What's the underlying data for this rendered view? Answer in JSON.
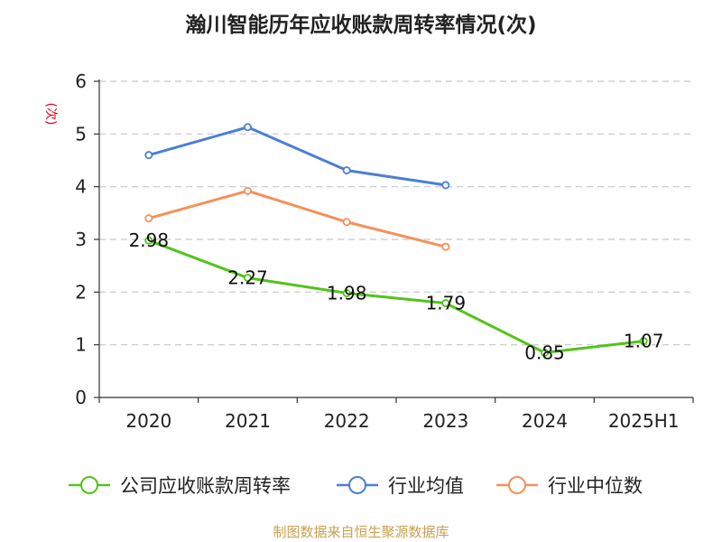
{
  "chart_data": {
    "type": "line",
    "title": "瀚川智能历年应收账款周转率情况(次)",
    "ylabel": "(次)",
    "categories": [
      "2020",
      "2021",
      "2022",
      "2023",
      "2024",
      "2025H1"
    ],
    "y_ticks": [
      "0",
      "1",
      "2",
      "3",
      "4",
      "5",
      "6"
    ],
    "ylim": [
      0,
      6
    ],
    "grid": true,
    "legend_position": "bottom",
    "series": [
      {
        "name": "公司应收账款周转率",
        "color": "#52c41a",
        "values": [
          2.98,
          2.27,
          1.98,
          1.79,
          0.85,
          1.07
        ],
        "labels": [
          "2.98",
          "2.27",
          "1.98",
          "1.79",
          "0.85",
          "1.07"
        ]
      },
      {
        "name": "行业均值",
        "color": "#4a7fd6",
        "values": [
          4.6,
          5.13,
          4.31,
          4.03,
          null,
          null
        ]
      },
      {
        "name": "行业中位数",
        "color": "#f5905a",
        "values": [
          3.4,
          3.92,
          3.33,
          2.86,
          null,
          null
        ]
      }
    ],
    "source": "制图数据来自恒生聚源数据库"
  }
}
